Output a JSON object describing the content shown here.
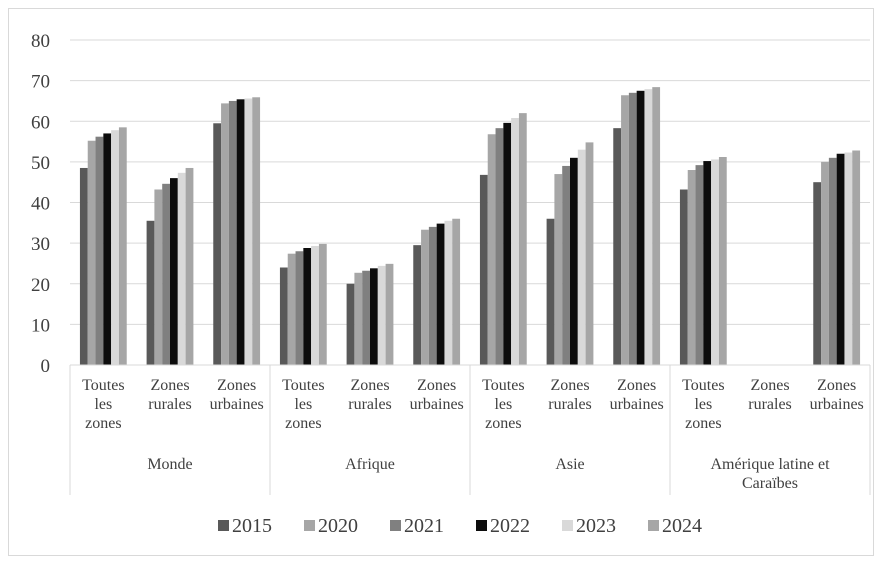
{
  "chart_data": {
    "type": "bar",
    "title": "",
    "xlabel": "",
    "ylabel": "",
    "ylim": [
      0,
      80
    ],
    "yticks": [
      "0",
      "10",
      "20",
      "30",
      "40",
      "50",
      "60",
      "70",
      "80"
    ],
    "grid": true,
    "legend_position": "bottom",
    "groups": [
      {
        "name": "Monde",
        "categories": [
          [
            "Toutes",
            "les",
            "zones"
          ],
          [
            "Zones",
            "rurales"
          ],
          [
            "Zones",
            "urbaines"
          ]
        ]
      },
      {
        "name": "Afrique",
        "categories": [
          [
            "Toutes",
            "les",
            "zones"
          ],
          [
            "Zones",
            "rurales"
          ],
          [
            "Zones",
            "urbaines"
          ]
        ]
      },
      {
        "name": "Asie",
        "categories": [
          [
            "Toutes",
            "les",
            "zones"
          ],
          [
            "Zones",
            "rurales"
          ],
          [
            "Zones",
            "urbaines"
          ]
        ]
      },
      {
        "name": [
          "Amérique latine et",
          "Caraïbes"
        ],
        "categories": [
          [
            "Toutes",
            "les",
            "zones"
          ],
          [
            "Zones",
            "rurales"
          ],
          [
            "Zones",
            "urbaines"
          ]
        ]
      }
    ],
    "series": [
      {
        "name": "2015",
        "color": "#595959",
        "values": [
          48.5,
          35.5,
          59.5,
          24.0,
          20.0,
          29.5,
          46.8,
          36.0,
          58.3,
          43.2,
          null,
          45.0
        ]
      },
      {
        "name": "2020",
        "color": "#a6a6a6",
        "values": [
          55.2,
          43.2,
          64.4,
          27.4,
          22.7,
          33.3,
          56.8,
          47.0,
          66.4,
          48.0,
          null,
          50.0
        ]
      },
      {
        "name": "2021",
        "color": "#808080",
        "values": [
          56.2,
          44.6,
          65.0,
          28.0,
          23.2,
          34.0,
          58.3,
          49.0,
          67.0,
          49.2,
          null,
          51.0
        ]
      },
      {
        "name": "2022",
        "color": "#0d0d0d",
        "values": [
          57.0,
          46.0,
          65.4,
          28.8,
          23.8,
          34.8,
          59.6,
          51.0,
          67.5,
          50.2,
          null,
          52.0
        ]
      },
      {
        "name": "2023",
        "color": "#d9d9d9",
        "values": [
          57.8,
          47.3,
          65.6,
          29.3,
          24.4,
          35.5,
          60.8,
          53.0,
          67.9,
          50.6,
          null,
          52.3
        ]
      },
      {
        "name": "2024",
        "color": "#a6a6a6",
        "values": [
          58.5,
          48.5,
          65.9,
          29.8,
          24.9,
          36.0,
          62.0,
          54.8,
          68.4,
          51.2,
          null,
          52.8
        ]
      }
    ]
  }
}
